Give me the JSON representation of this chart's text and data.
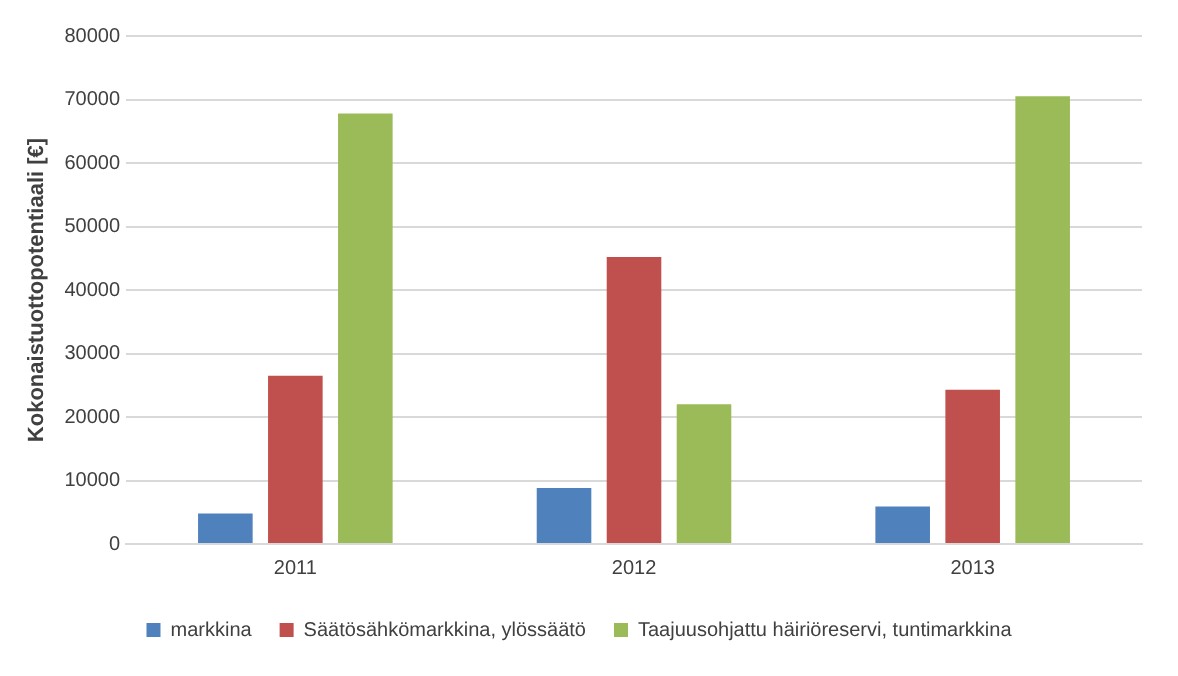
{
  "chart_data": {
    "type": "bar",
    "ylabel": "Kokonaistuottopotentiaali [€]",
    "categories": [
      "2011",
      "2012",
      "2013"
    ],
    "series": [
      {
        "name": "markkina",
        "color": "#4f81bd",
        "values": [
          4800,
          8800,
          5900
        ]
      },
      {
        "name": "Säätösähkömarkkina, ylössäätö",
        "color": "#c0504d",
        "values": [
          26500,
          45200,
          24300
        ]
      },
      {
        "name": "Taajuusohjattu häiriöreservi, tuntimarkkina",
        "color": "#9bbb59",
        "values": [
          67800,
          22000,
          70500
        ]
      }
    ],
    "ylim": [
      0,
      80000
    ],
    "yticks": [
      0,
      10000,
      20000,
      30000,
      40000,
      50000,
      60000,
      70000,
      80000
    ],
    "grid": "y",
    "legend": "bottom"
  }
}
